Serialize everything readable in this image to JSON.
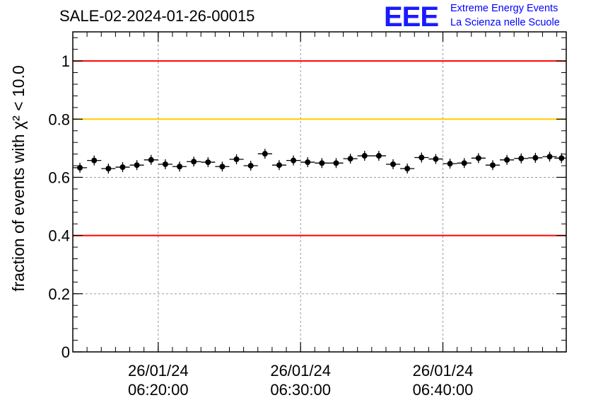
{
  "title": "SALE-02-2024-01-26-00015",
  "logo": {
    "letters": "EEE",
    "line1": "Extreme Energy Events",
    "line2": "La Scienza nelle Scuole",
    "color": "#0000ff"
  },
  "chart_data": {
    "type": "scatter",
    "title": "SALE-02-2024-01-26-00015",
    "ylabel": "fraction of events with χ² < 10.0",
    "ylim": [
      0,
      1.1
    ],
    "yticks": [
      0,
      0.2,
      0.4,
      0.6,
      0.8,
      1
    ],
    "ytick_labels": [
      "0",
      "0.2",
      "0.4",
      "0.6",
      "0.8",
      "1"
    ],
    "xlim": [
      "26/01/24 06:14:00",
      "26/01/24 06:48:40"
    ],
    "xticks": [
      {
        "date": "26/01/24",
        "time": "06:20:00"
      },
      {
        "date": "26/01/24",
        "time": "06:30:00"
      },
      {
        "date": "26/01/24",
        "time": "06:40:00"
      }
    ],
    "grid": true,
    "reference_lines": [
      {
        "y": 1.0,
        "color": "#ff0000"
      },
      {
        "y": 0.8,
        "color": "#ffcc00"
      },
      {
        "y": 0.4,
        "color": "#ff0000"
      }
    ],
    "series": [
      {
        "marker_color": "#000000",
        "x": [
          "06:14:30",
          "06:15:30",
          "06:16:30",
          "06:17:30",
          "06:18:30",
          "06:19:30",
          "06:20:30",
          "06:21:30",
          "06:22:30",
          "06:23:30",
          "06:24:30",
          "06:25:30",
          "06:26:30",
          "06:27:30",
          "06:28:30",
          "06:29:30",
          "06:30:30",
          "06:31:30",
          "06:32:30",
          "06:33:30",
          "06:34:30",
          "06:35:30",
          "06:36:30",
          "06:37:30",
          "06:38:30",
          "06:39:30",
          "06:40:30",
          "06:41:30",
          "06:42:30",
          "06:43:30",
          "06:44:30",
          "06:45:30",
          "06:46:30",
          "06:47:30",
          "06:48:20"
        ],
        "y": [
          0.633,
          0.658,
          0.63,
          0.635,
          0.642,
          0.66,
          0.645,
          0.637,
          0.654,
          0.652,
          0.637,
          0.662,
          0.64,
          0.681,
          0.642,
          0.658,
          0.652,
          0.649,
          0.649,
          0.664,
          0.674,
          0.674,
          0.645,
          0.63,
          0.668,
          0.663,
          0.647,
          0.649,
          0.666,
          0.642,
          0.66,
          0.665,
          0.667,
          0.671,
          0.666
        ]
      }
    ]
  }
}
